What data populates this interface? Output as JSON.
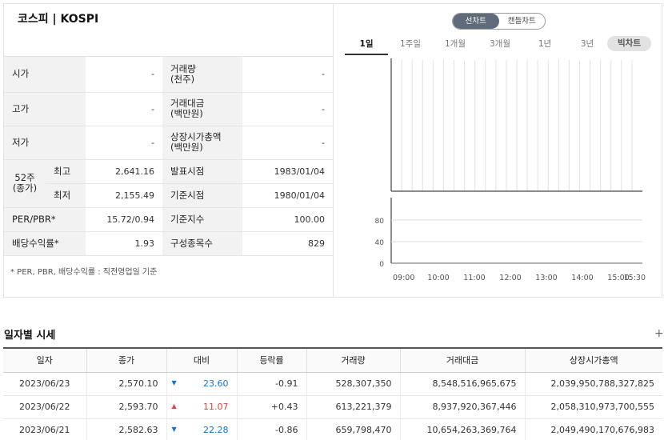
{
  "title": "코스피 | KOSPI",
  "colors": {
    "up": "#e04040",
    "down": "#1a6fd6",
    "label_bg": "#f2f2f2",
    "toggle_active": "#5f6b7a"
  },
  "chart_toggle": {
    "line": "선차트",
    "candle": "캔들차트",
    "selected": "선차트"
  },
  "period_tabs": [
    "1일",
    "1주일",
    "1개월",
    "3개월",
    "1년",
    "3년"
  ],
  "period_active": "1일",
  "bigchart_label": "빅차트",
  "info": {
    "open_label": "시가",
    "open_value": "-",
    "high_label": "고가",
    "high_value": "-",
    "low_label": "저가",
    "low_value": "-",
    "volume_label_1": "거래량",
    "volume_label_2": "(천주)",
    "volume_value": "-",
    "amount_label_1": "거래대금",
    "amount_label_2": "(백만원)",
    "amount_value": "-",
    "mktcap_label_1": "상장시가총액",
    "mktcap_label_2": "(백만원)",
    "mktcap_value": "-",
    "week52_label_1": "52주",
    "week52_label_2": "(종가)",
    "week52_high_label": "최고",
    "week52_high_value": "2,641.16",
    "week52_low_label": "최저",
    "week52_low_value": "2,155.49",
    "announce_label": "발표시점",
    "announce_value": "1983/01/04",
    "base_date_label": "기준시점",
    "base_date_value": "1980/01/04",
    "per_pbr_label": "PER/PBR*",
    "per_pbr_value": "15.72/0.94",
    "base_index_label": "기준지수",
    "base_index_value": "100.00",
    "dividend_label": "배당수익률*",
    "dividend_value": "1.93",
    "constituents_label": "구성종목수",
    "constituents_value": "829"
  },
  "footnote": "* PER, PBR, 배당수익률 : 직전영업일 기준",
  "chart_data": {
    "type": "line",
    "x_ticks": [
      "09:00",
      "10:00",
      "11:00",
      "12:00",
      "13:00",
      "14:00",
      "15:00",
      "15:30"
    ],
    "volume_y_ticks": [
      "80",
      "40",
      "0"
    ],
    "series": []
  },
  "daily": {
    "title": "일자별 시세",
    "headers": [
      "일자",
      "종가",
      "대비",
      "등락률",
      "거래량",
      "거래대금",
      "상장시가총액"
    ],
    "rows": [
      {
        "date": "2023/06/23",
        "close": "2,570.10",
        "direction": "down",
        "change": "23.60",
        "rate": "-0.91",
        "volume": "528,307,350",
        "amount": "8,548,516,965,675",
        "mktcap": "2,039,950,788,327,825"
      },
      {
        "date": "2023/06/22",
        "close": "2,593.70",
        "direction": "up",
        "change": "11.07",
        "rate": "+0.43",
        "volume": "613,221,379",
        "amount": "8,937,920,367,446",
        "mktcap": "2,058,310,973,700,555"
      },
      {
        "date": "2023/06/21",
        "close": "2,582.63",
        "direction": "down",
        "change": "22.28",
        "rate": "-0.86",
        "volume": "659,798,470",
        "amount": "10,654,263,369,764",
        "mktcap": "2,049,490,170,676,983"
      }
    ]
  }
}
